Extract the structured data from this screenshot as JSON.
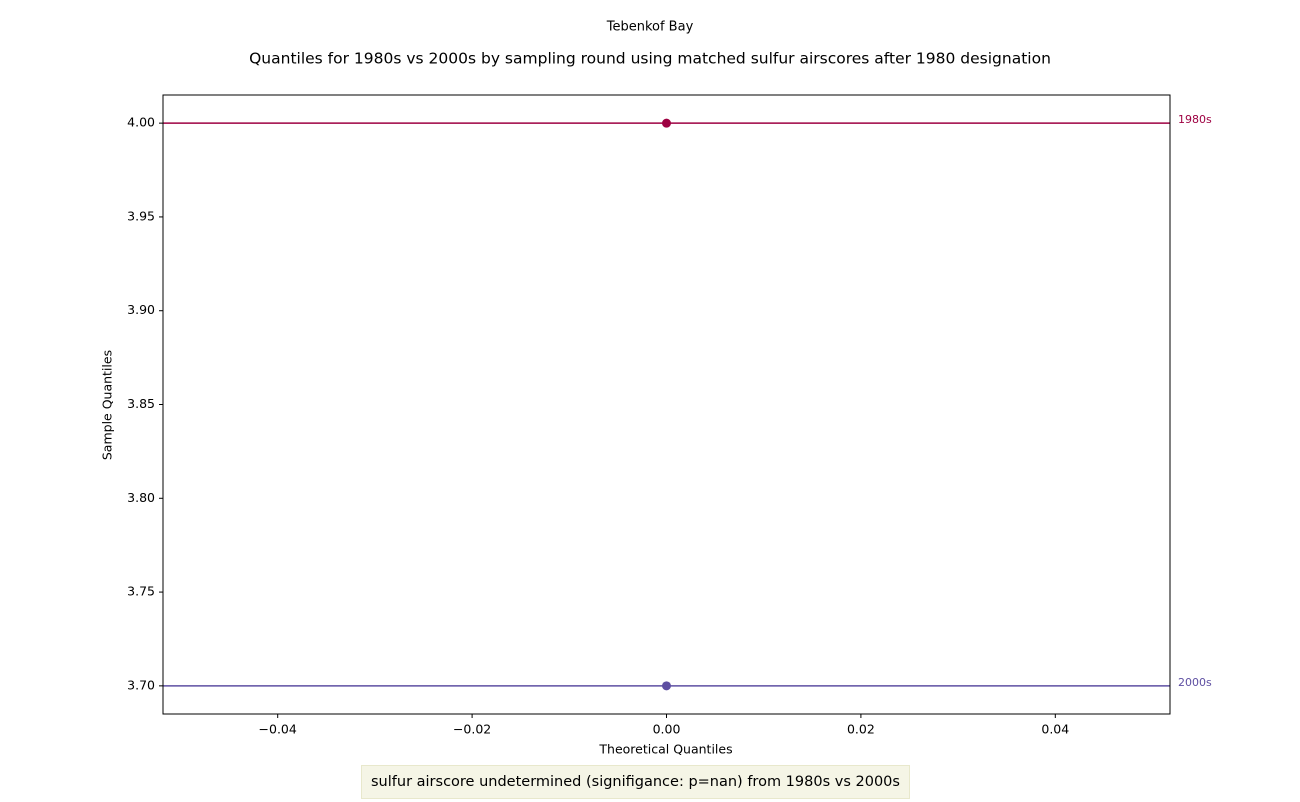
{
  "chart_data": {
    "type": "scatter",
    "suptitle": "Tebenkof Bay",
    "title": "Quantiles for 1980s vs 2000s by sampling round using matched sulfur airscores after 1980 designation",
    "xlabel": "Theoretical Quantiles",
    "ylabel": "Sample Quantiles",
    "annotation": "sulfur airscore undetermined (signifigance: p=nan) from 1980s vs 2000s",
    "xlim": [
      -0.0518,
      0.0518
    ],
    "ylim": [
      3.685,
      4.015
    ],
    "xticks": [
      {
        "value": -0.04,
        "label": "−0.04"
      },
      {
        "value": -0.02,
        "label": "−0.02"
      },
      {
        "value": 0,
        "label": "0.00"
      },
      0.02,
      0.04
    ],
    "yticks": [
      {
        "value": 3.7,
        "label": "3.70"
      },
      3.75,
      {
        "value": 3.8,
        "label": "3.80"
      },
      3.85,
      {
        "value": 3.9,
        "label": "3.90"
      },
      3.95,
      {
        "value": 4.0,
        "label": "4.00"
      }
    ],
    "series": [
      {
        "name": "1980s",
        "color": "#9e0142",
        "x": [
          0
        ],
        "values": [
          4.0
        ]
      },
      {
        "name": "2000s",
        "color": "#5e4fa2",
        "x": [
          0
        ],
        "values": [
          3.7
        ]
      }
    ]
  }
}
